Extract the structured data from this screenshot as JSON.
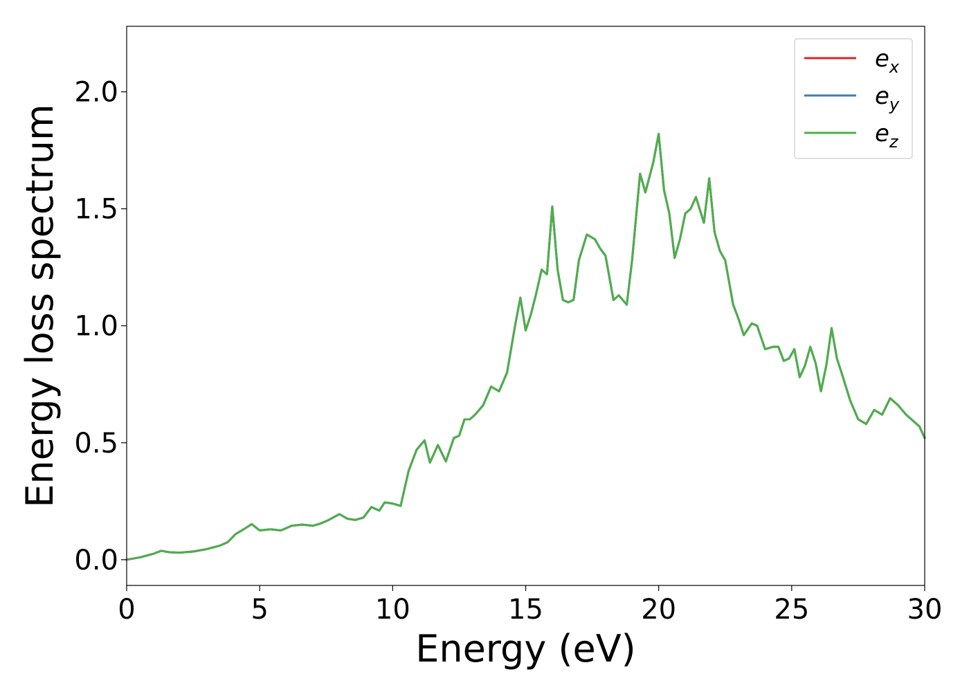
{
  "chart_data": {
    "type": "line",
    "title": "",
    "xlabel": "Energy (eV)",
    "ylabel": "Energy loss spectrum",
    "xlim": [
      0,
      30
    ],
    "ylim": [
      -0.11,
      2.28
    ],
    "xticks": [
      0,
      5,
      10,
      15,
      20,
      25,
      30
    ],
    "xtick_labels": [
      "0",
      "5",
      "10",
      "15",
      "20",
      "25",
      "30"
    ],
    "yticks": [
      0.0,
      0.5,
      1.0,
      1.5,
      2.0
    ],
    "ytick_labels": [
      "0.0",
      "0.5",
      "1.0",
      "1.5",
      "2.0"
    ],
    "grid": false,
    "legend_position": "top-right",
    "x": [
      0,
      0.5,
      1.0,
      1.3,
      1.6,
      2.0,
      2.5,
      3.0,
      3.5,
      3.8,
      4.1,
      4.4,
      4.7,
      5.0,
      5.4,
      5.8,
      6.2,
      6.6,
      7.0,
      7.3,
      7.6,
      8.0,
      8.3,
      8.6,
      8.9,
      9.2,
      9.5,
      9.7,
      10.0,
      10.3,
      10.6,
      10.9,
      11.2,
      11.4,
      11.7,
      12.0,
      12.3,
      12.5,
      12.7,
      12.9,
      13.1,
      13.4,
      13.7,
      14.0,
      14.3,
      14.6,
      14.8,
      15.0,
      15.2,
      15.4,
      15.6,
      15.8,
      16.0,
      16.2,
      16.4,
      16.6,
      16.8,
      17.0,
      17.3,
      17.6,
      17.8,
      18.0,
      18.3,
      18.5,
      18.8,
      19.0,
      19.3,
      19.5,
      19.8,
      20.0,
      20.2,
      20.4,
      20.6,
      20.8,
      21.0,
      21.2,
      21.4,
      21.7,
      21.9,
      22.1,
      22.3,
      22.5,
      22.8,
      23.0,
      23.2,
      23.5,
      23.7,
      24.0,
      24.3,
      24.5,
      24.7,
      24.9,
      25.1,
      25.3,
      25.5,
      25.7,
      25.9,
      26.1,
      26.3,
      26.5,
      26.7,
      26.9,
      27.2,
      27.5,
      27.8,
      28.1,
      28.4,
      28.7,
      29.0,
      29.3,
      29.6,
      29.8,
      30.0
    ],
    "series": [
      {
        "name": "e_x",
        "label_base": "e",
        "label_sub": "x",
        "color": "#d62728",
        "values": [
          0.0,
          0.01,
          0.025,
          0.038,
          0.032,
          0.03,
          0.035,
          0.045,
          0.06,
          0.075,
          0.11,
          0.13,
          0.152,
          0.125,
          0.13,
          0.125,
          0.145,
          0.15,
          0.145,
          0.155,
          0.17,
          0.195,
          0.175,
          0.17,
          0.18,
          0.225,
          0.21,
          0.245,
          0.24,
          0.23,
          0.38,
          0.47,
          0.51,
          0.415,
          0.49,
          0.42,
          0.52,
          0.53,
          0.6,
          0.6,
          0.62,
          0.66,
          0.74,
          0.72,
          0.8,
          1.0,
          1.12,
          0.98,
          1.05,
          1.14,
          1.24,
          1.22,
          1.51,
          1.24,
          1.11,
          1.1,
          1.11,
          1.28,
          1.39,
          1.37,
          1.33,
          1.3,
          1.11,
          1.13,
          1.09,
          1.28,
          1.65,
          1.57,
          1.7,
          1.82,
          1.58,
          1.48,
          1.29,
          1.37,
          1.48,
          1.5,
          1.55,
          1.44,
          1.63,
          1.4,
          1.32,
          1.28,
          1.09,
          1.03,
          0.96,
          1.01,
          1.0,
          0.9,
          0.91,
          0.91,
          0.85,
          0.86,
          0.9,
          0.78,
          0.83,
          0.91,
          0.84,
          0.72,
          0.83,
          0.99,
          0.86,
          0.79,
          0.68,
          0.6,
          0.58,
          0.64,
          0.62,
          0.69,
          0.66,
          0.62,
          0.59,
          0.57,
          0.52
        ]
      },
      {
        "name": "e_y",
        "label_base": "e",
        "label_sub": "y",
        "color": "#377eb8",
        "values": [
          0.0,
          0.01,
          0.025,
          0.038,
          0.032,
          0.03,
          0.035,
          0.045,
          0.06,
          0.075,
          0.11,
          0.13,
          0.152,
          0.125,
          0.13,
          0.125,
          0.145,
          0.15,
          0.145,
          0.155,
          0.17,
          0.195,
          0.175,
          0.17,
          0.18,
          0.225,
          0.21,
          0.245,
          0.24,
          0.23,
          0.38,
          0.47,
          0.51,
          0.415,
          0.49,
          0.42,
          0.52,
          0.53,
          0.6,
          0.6,
          0.62,
          0.66,
          0.74,
          0.72,
          0.8,
          1.0,
          1.12,
          0.98,
          1.05,
          1.14,
          1.24,
          1.22,
          1.51,
          1.24,
          1.11,
          1.1,
          1.11,
          1.28,
          1.39,
          1.37,
          1.33,
          1.3,
          1.11,
          1.13,
          1.09,
          1.28,
          1.65,
          1.57,
          1.7,
          1.82,
          1.58,
          1.48,
          1.29,
          1.37,
          1.48,
          1.5,
          1.55,
          1.44,
          1.63,
          1.4,
          1.32,
          1.28,
          1.09,
          1.03,
          0.96,
          1.01,
          1.0,
          0.9,
          0.91,
          0.91,
          0.85,
          0.86,
          0.9,
          0.78,
          0.83,
          0.91,
          0.84,
          0.72,
          0.83,
          0.99,
          0.86,
          0.79,
          0.68,
          0.6,
          0.58,
          0.64,
          0.62,
          0.69,
          0.66,
          0.62,
          0.59,
          0.57,
          0.52
        ]
      },
      {
        "name": "e_z",
        "label_base": "e",
        "label_sub": "z",
        "color": "#4daf4a",
        "values": [
          0.0,
          0.01,
          0.025,
          0.038,
          0.032,
          0.03,
          0.035,
          0.045,
          0.06,
          0.075,
          0.11,
          0.13,
          0.152,
          0.125,
          0.13,
          0.125,
          0.145,
          0.15,
          0.145,
          0.155,
          0.17,
          0.195,
          0.175,
          0.17,
          0.18,
          0.225,
          0.21,
          0.245,
          0.24,
          0.23,
          0.38,
          0.47,
          0.51,
          0.415,
          0.49,
          0.42,
          0.52,
          0.53,
          0.6,
          0.6,
          0.62,
          0.66,
          0.74,
          0.72,
          0.8,
          1.0,
          1.12,
          0.98,
          1.05,
          1.14,
          1.24,
          1.22,
          1.51,
          1.24,
          1.11,
          1.1,
          1.11,
          1.28,
          1.39,
          1.37,
          1.33,
          1.3,
          1.11,
          1.13,
          1.09,
          1.28,
          1.65,
          1.57,
          1.7,
          1.82,
          1.58,
          1.48,
          1.29,
          1.37,
          1.48,
          1.5,
          1.55,
          1.44,
          1.63,
          1.4,
          1.32,
          1.28,
          1.09,
          1.03,
          0.96,
          1.01,
          1.0,
          0.9,
          0.91,
          0.91,
          0.85,
          0.86,
          0.9,
          0.78,
          0.83,
          0.91,
          0.84,
          0.72,
          0.83,
          0.99,
          0.86,
          0.79,
          0.68,
          0.6,
          0.58,
          0.64,
          0.62,
          0.69,
          0.66,
          0.62,
          0.59,
          0.57,
          0.52
        ]
      }
    ]
  }
}
